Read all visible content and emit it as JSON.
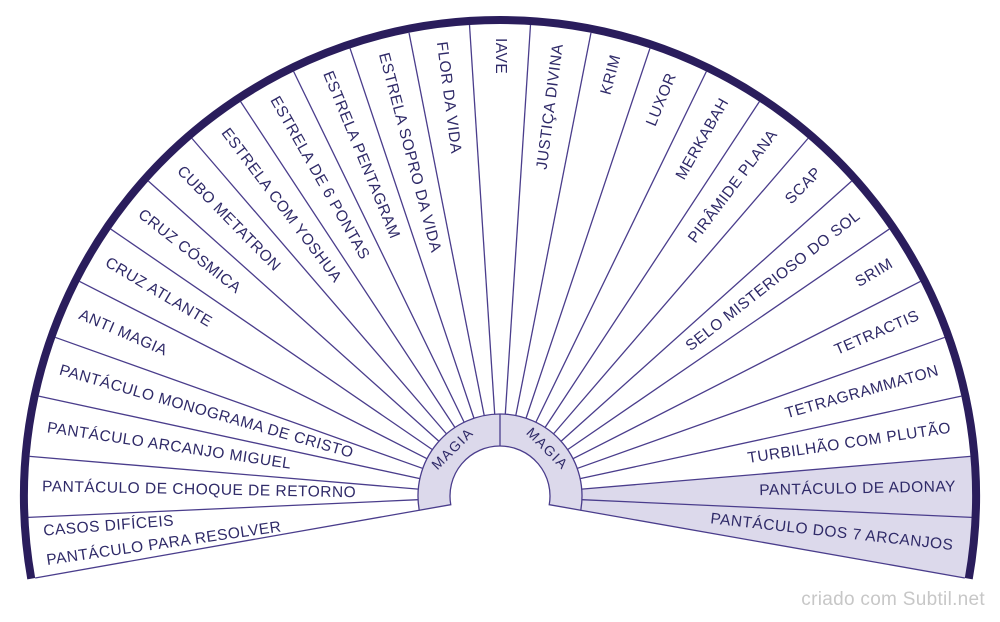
{
  "page": {
    "credit": "criado com Subtil.net",
    "background": "#ffffff"
  },
  "wheel": {
    "theme": "MAGIA",
    "center_left": "MAGIA",
    "center_right": "MAGIA",
    "colors": {
      "border": "#2a1d5c",
      "line": "#4a3d8c",
      "text": "#2f2a68",
      "shade": "#dcd9eb",
      "credit": "#c7c7c7",
      "background": "#ffffff"
    },
    "sectors": [
      {
        "lines": [
          "PANTÁCULO PARA RESOLVER",
          "CASOS DIFÍCEIS"
        ],
        "shaded": false
      },
      {
        "label": "PANTÁCULO DE CHOQUE DE RETORNO",
        "shaded": false
      },
      {
        "label": "PANTÁCULO ARCANJO MIGUEL",
        "shaded": false
      },
      {
        "label": "PANTÁCULO MONOGRAMA DE CRISTO",
        "shaded": false
      },
      {
        "label": "ANTI MAGIA",
        "shaded": false
      },
      {
        "label": "CRUZ ATLANTE",
        "shaded": false
      },
      {
        "label": "CRUZ CÓSMICA",
        "shaded": false
      },
      {
        "label": "CUBO METATRON",
        "shaded": false
      },
      {
        "label": "ESTRELA COM YOSHUA",
        "shaded": false
      },
      {
        "label": "ESTRELA DE 6 PONTAS",
        "shaded": false
      },
      {
        "label": "ESTRELA PENTAGRAM",
        "shaded": false
      },
      {
        "label": "ESTRELA SOPRO DA VIDA",
        "shaded": false
      },
      {
        "label": "FLOR DA VIDA",
        "shaded": false
      },
      {
        "label": "IAVE",
        "shaded": false
      },
      {
        "label": "JUSTIÇA DIVINA",
        "shaded": false
      },
      {
        "label": "KRIM",
        "shaded": false
      },
      {
        "label": "LUXOR",
        "shaded": false
      },
      {
        "label": "MERKABAH",
        "shaded": false
      },
      {
        "label": "PIRÂMIDE PLANA",
        "shaded": false
      },
      {
        "label": "SCAP",
        "shaded": false
      },
      {
        "label": "SELO MISTERIOSO DO SOL",
        "shaded": false
      },
      {
        "label": "SRIM",
        "shaded": false
      },
      {
        "label": "TETRACTIS",
        "shaded": false
      },
      {
        "label": "TETRAGRAMMATON",
        "shaded": false
      },
      {
        "label": "TURBILHÃO COM PLUTÃO",
        "shaded": false
      },
      {
        "label": "PANTÁCULO DE ADONAY",
        "shaded": true
      },
      {
        "label": "PANTÁCULO DOS 7 ARCANJOS",
        "shaded": true
      }
    ]
  }
}
